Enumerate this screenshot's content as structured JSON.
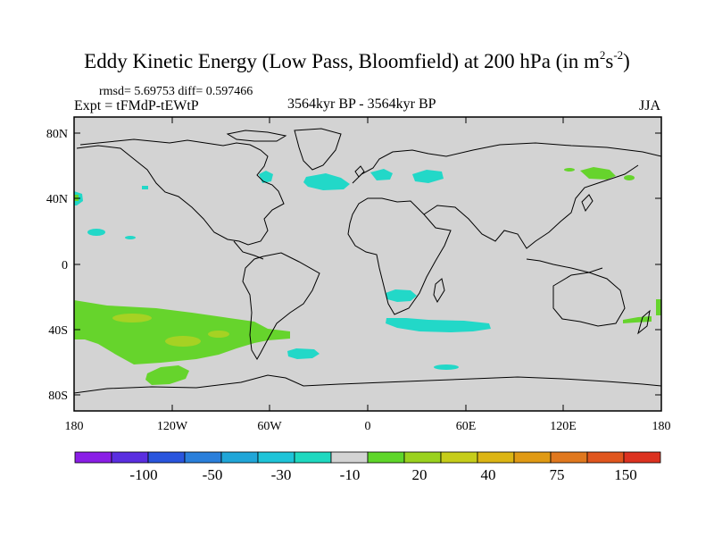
{
  "title": {
    "main": "Eddy Kinetic Energy (Low Pass, Bloomfield) at 200 hPa (in m",
    "sup1": "2",
    "mid": "s",
    "sup2": "-2",
    "end": ")"
  },
  "stats": "rmsd= 5.69753 diff= 0.597466",
  "experiment": "Expt = tFMdP-tEWtP",
  "period": "3564kyr BP - 3564kyr BP",
  "season": "JJA",
  "axes": {
    "lon_labels": [
      "180",
      "120W",
      "60W",
      "0",
      "60E",
      "120E",
      "180"
    ],
    "lat_labels": [
      "80N",
      "40N",
      "0",
      "40S",
      "80S"
    ]
  },
  "colorbar": {
    "colors": [
      "#8a1ee6",
      "#5a2ee0",
      "#2a55dd",
      "#2a7fdb",
      "#20a6d8",
      "#1ec4d8",
      "#1ed9c0",
      "#d3d3d3",
      "#5ed62a",
      "#9ad21e",
      "#c6cd1a",
      "#dcb514",
      "#e09a14",
      "#e0781e",
      "#e0561e",
      "#dc3220"
    ],
    "labels": [
      "-100",
      "-50",
      "-30",
      "-10",
      "20",
      "40",
      "75",
      "150"
    ]
  },
  "colors": {
    "land_bg": "#d3d3d3",
    "cyan": "#22d8c8",
    "green": "#66d42c",
    "yellowgreen": "#a6d223"
  }
}
